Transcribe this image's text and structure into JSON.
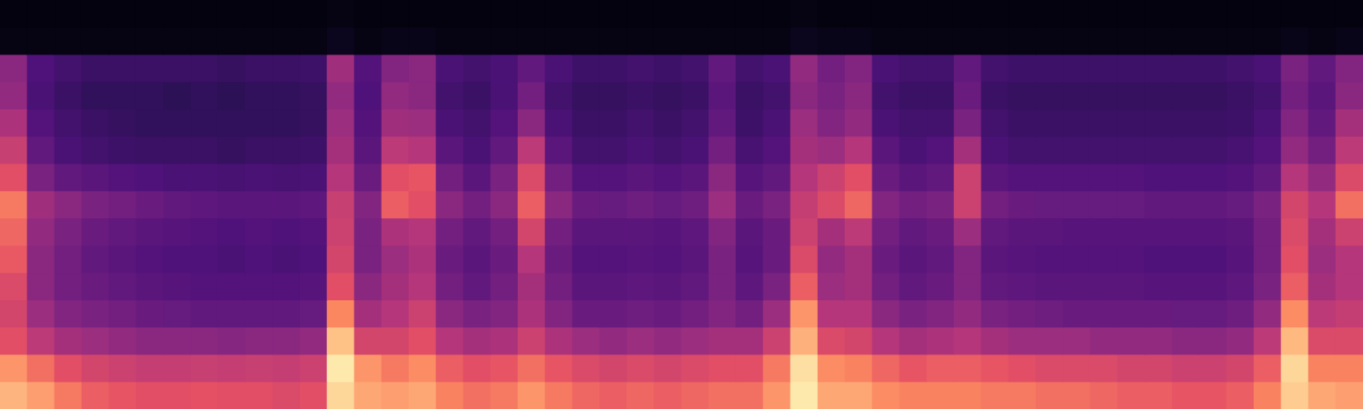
{
  "chart_data": {
    "type": "heatmap",
    "tick_labels": false,
    "grid": false,
    "color_range": [
      0,
      100
    ],
    "columns": [
      [
        2,
        3,
        40,
        42,
        48,
        55,
        62,
        72,
        68,
        65,
        60,
        58,
        62,
        78,
        85
      ],
      [
        2,
        3,
        25,
        24,
        26,
        30,
        36,
        45,
        42,
        40,
        40,
        44,
        52,
        70,
        80
      ],
      [
        2,
        3,
        22,
        20,
        22,
        24,
        30,
        40,
        36,
        34,
        34,
        38,
        46,
        62,
        72
      ],
      [
        2,
        3,
        20,
        18,
        20,
        22,
        28,
        36,
        32,
        30,
        32,
        36,
        44,
        58,
        66
      ],
      [
        2,
        3,
        20,
        18,
        19,
        21,
        26,
        34,
        30,
        28,
        30,
        34,
        42,
        56,
        64
      ],
      [
        2,
        3,
        20,
        18,
        18,
        20,
        25,
        32,
        28,
        26,
        28,
        32,
        40,
        54,
        62
      ],
      [
        2,
        3,
        20,
        17,
        18,
        20,
        24,
        30,
        27,
        25,
        27,
        31,
        40,
        54,
        62
      ],
      [
        2,
        3,
        20,
        18,
        18,
        20,
        24,
        29,
        26,
        25,
        26,
        30,
        40,
        55,
        63
      ],
      [
        2,
        3,
        19,
        17,
        18,
        19,
        23,
        28,
        25,
        24,
        26,
        30,
        39,
        54,
        62
      ],
      [
        2,
        3,
        20,
        18,
        18,
        20,
        24,
        28,
        26,
        25,
        26,
        30,
        40,
        55,
        62
      ],
      [
        2,
        3,
        20,
        18,
        18,
        20,
        23,
        28,
        25,
        24,
        26,
        30,
        40,
        54,
        60
      ],
      [
        2,
        3,
        21,
        19,
        19,
        21,
        24,
        29,
        26,
        25,
        27,
        31,
        42,
        56,
        62
      ],
      [
        3,
        5,
        45,
        42,
        44,
        46,
        50,
        55,
        56,
        58,
        62,
        75,
        88,
        96,
        92
      ],
      [
        2,
        3,
        26,
        25,
        26,
        28,
        32,
        38,
        36,
        36,
        40,
        46,
        58,
        78,
        82
      ],
      [
        2,
        4,
        38,
        42,
        45,
        52,
        62,
        66,
        48,
        44,
        46,
        50,
        58,
        72,
        80
      ],
      [
        2,
        4,
        40,
        40,
        44,
        50,
        64,
        62,
        50,
        48,
        50,
        56,
        62,
        76,
        82
      ],
      [
        2,
        3,
        24,
        22,
        24,
        28,
        34,
        40,
        34,
        32,
        34,
        40,
        50,
        66,
        74
      ],
      [
        2,
        3,
        22,
        20,
        22,
        24,
        28,
        34,
        30,
        28,
        30,
        36,
        46,
        62,
        70
      ],
      [
        2,
        3,
        24,
        24,
        26,
        30,
        36,
        40,
        34,
        32,
        34,
        38,
        48,
        64,
        72
      ],
      [
        2,
        3,
        30,
        34,
        40,
        52,
        60,
        66,
        58,
        50,
        46,
        48,
        56,
        70,
        78
      ],
      [
        2,
        3,
        24,
        22,
        24,
        28,
        34,
        40,
        34,
        32,
        34,
        38,
        48,
        64,
        72
      ],
      [
        2,
        3,
        21,
        19,
        20,
        22,
        26,
        32,
        28,
        26,
        28,
        32,
        44,
        60,
        68
      ],
      [
        2,
        3,
        21,
        19,
        20,
        22,
        26,
        31,
        28,
        26,
        28,
        32,
        42,
        58,
        66
      ],
      [
        2,
        3,
        22,
        20,
        22,
        24,
        28,
        33,
        28,
        27,
        29,
        33,
        44,
        60,
        68
      ],
      [
        2,
        3,
        21,
        19,
        20,
        22,
        26,
        31,
        27,
        26,
        28,
        32,
        42,
        58,
        66
      ],
      [
        2,
        3,
        22,
        20,
        22,
        24,
        28,
        33,
        29,
        28,
        30,
        34,
        44,
        60,
        68
      ],
      [
        2,
        3,
        30,
        28,
        30,
        34,
        40,
        44,
        38,
        36,
        36,
        38,
        46,
        62,
        70
      ],
      [
        2,
        3,
        22,
        20,
        21,
        23,
        27,
        32,
        28,
        27,
        29,
        34,
        46,
        62,
        70
      ],
      [
        2,
        3,
        24,
        22,
        24,
        26,
        30,
        36,
        32,
        32,
        36,
        44,
        56,
        72,
        78
      ],
      [
        3,
        5,
        42,
        40,
        44,
        46,
        50,
        54,
        56,
        60,
        66,
        78,
        84,
        94,
        96
      ],
      [
        2,
        4,
        34,
        36,
        38,
        44,
        56,
        60,
        46,
        42,
        44,
        50,
        60,
        76,
        82
      ],
      [
        2,
        4,
        38,
        40,
        42,
        50,
        62,
        68,
        52,
        46,
        46,
        50,
        58,
        74,
        82
      ],
      [
        2,
        3,
        24,
        22,
        24,
        28,
        32,
        38,
        34,
        32,
        34,
        40,
        50,
        68,
        76
      ],
      [
        2,
        3,
        22,
        20,
        22,
        24,
        28,
        34,
        30,
        28,
        30,
        36,
        46,
        64,
        74
      ],
      [
        2,
        3,
        22,
        20,
        22,
        26,
        30,
        36,
        32,
        30,
        32,
        38,
        48,
        66,
        74
      ],
      [
        2,
        3,
        30,
        32,
        36,
        46,
        56,
        56,
        44,
        38,
        38,
        42,
        50,
        66,
        74
      ],
      [
        2,
        3,
        22,
        20,
        22,
        24,
        28,
        34,
        30,
        28,
        30,
        36,
        46,
        64,
        72
      ],
      [
        2,
        3,
        21,
        19,
        20,
        22,
        26,
        32,
        28,
        27,
        29,
        34,
        44,
        62,
        72
      ],
      [
        2,
        3,
        21,
        19,
        20,
        22,
        26,
        31,
        28,
        26,
        28,
        33,
        44,
        60,
        70
      ],
      [
        2,
        3,
        21,
        19,
        20,
        22,
        26,
        31,
        27,
        26,
        28,
        32,
        44,
        60,
        70
      ],
      [
        2,
        3,
        21,
        19,
        20,
        22,
        26,
        31,
        27,
        26,
        28,
        32,
        42,
        60,
        68
      ],
      [
        2,
        3,
        21,
        19,
        20,
        22,
        26,
        31,
        27,
        26,
        28,
        32,
        42,
        58,
        66
      ],
      [
        2,
        3,
        21,
        19,
        20,
        22,
        25,
        30,
        27,
        25,
        27,
        32,
        42,
        58,
        66
      ],
      [
        2,
        3,
        21,
        19,
        20,
        22,
        25,
        30,
        27,
        25,
        27,
        31,
        40,
        56,
        64
      ],
      [
        2,
        3,
        21,
        19,
        20,
        22,
        25,
        30,
        27,
        25,
        27,
        31,
        40,
        56,
        64
      ],
      [
        2,
        3,
        22,
        20,
        21,
        23,
        26,
        31,
        28,
        27,
        29,
        33,
        42,
        58,
        66
      ],
      [
        2,
        3,
        24,
        22,
        24,
        26,
        30,
        36,
        34,
        34,
        36,
        42,
        52,
        66,
        74
      ],
      [
        2,
        4,
        36,
        34,
        38,
        42,
        50,
        58,
        60,
        62,
        66,
        76,
        86,
        92,
        90
      ],
      [
        2,
        3,
        30,
        28,
        30,
        34,
        42,
        50,
        46,
        44,
        46,
        52,
        60,
        74,
        82
      ],
      [
        2,
        4,
        38,
        40,
        46,
        52,
        60,
        70,
        56,
        50,
        50,
        54,
        60,
        74,
        80
      ]
    ]
  }
}
